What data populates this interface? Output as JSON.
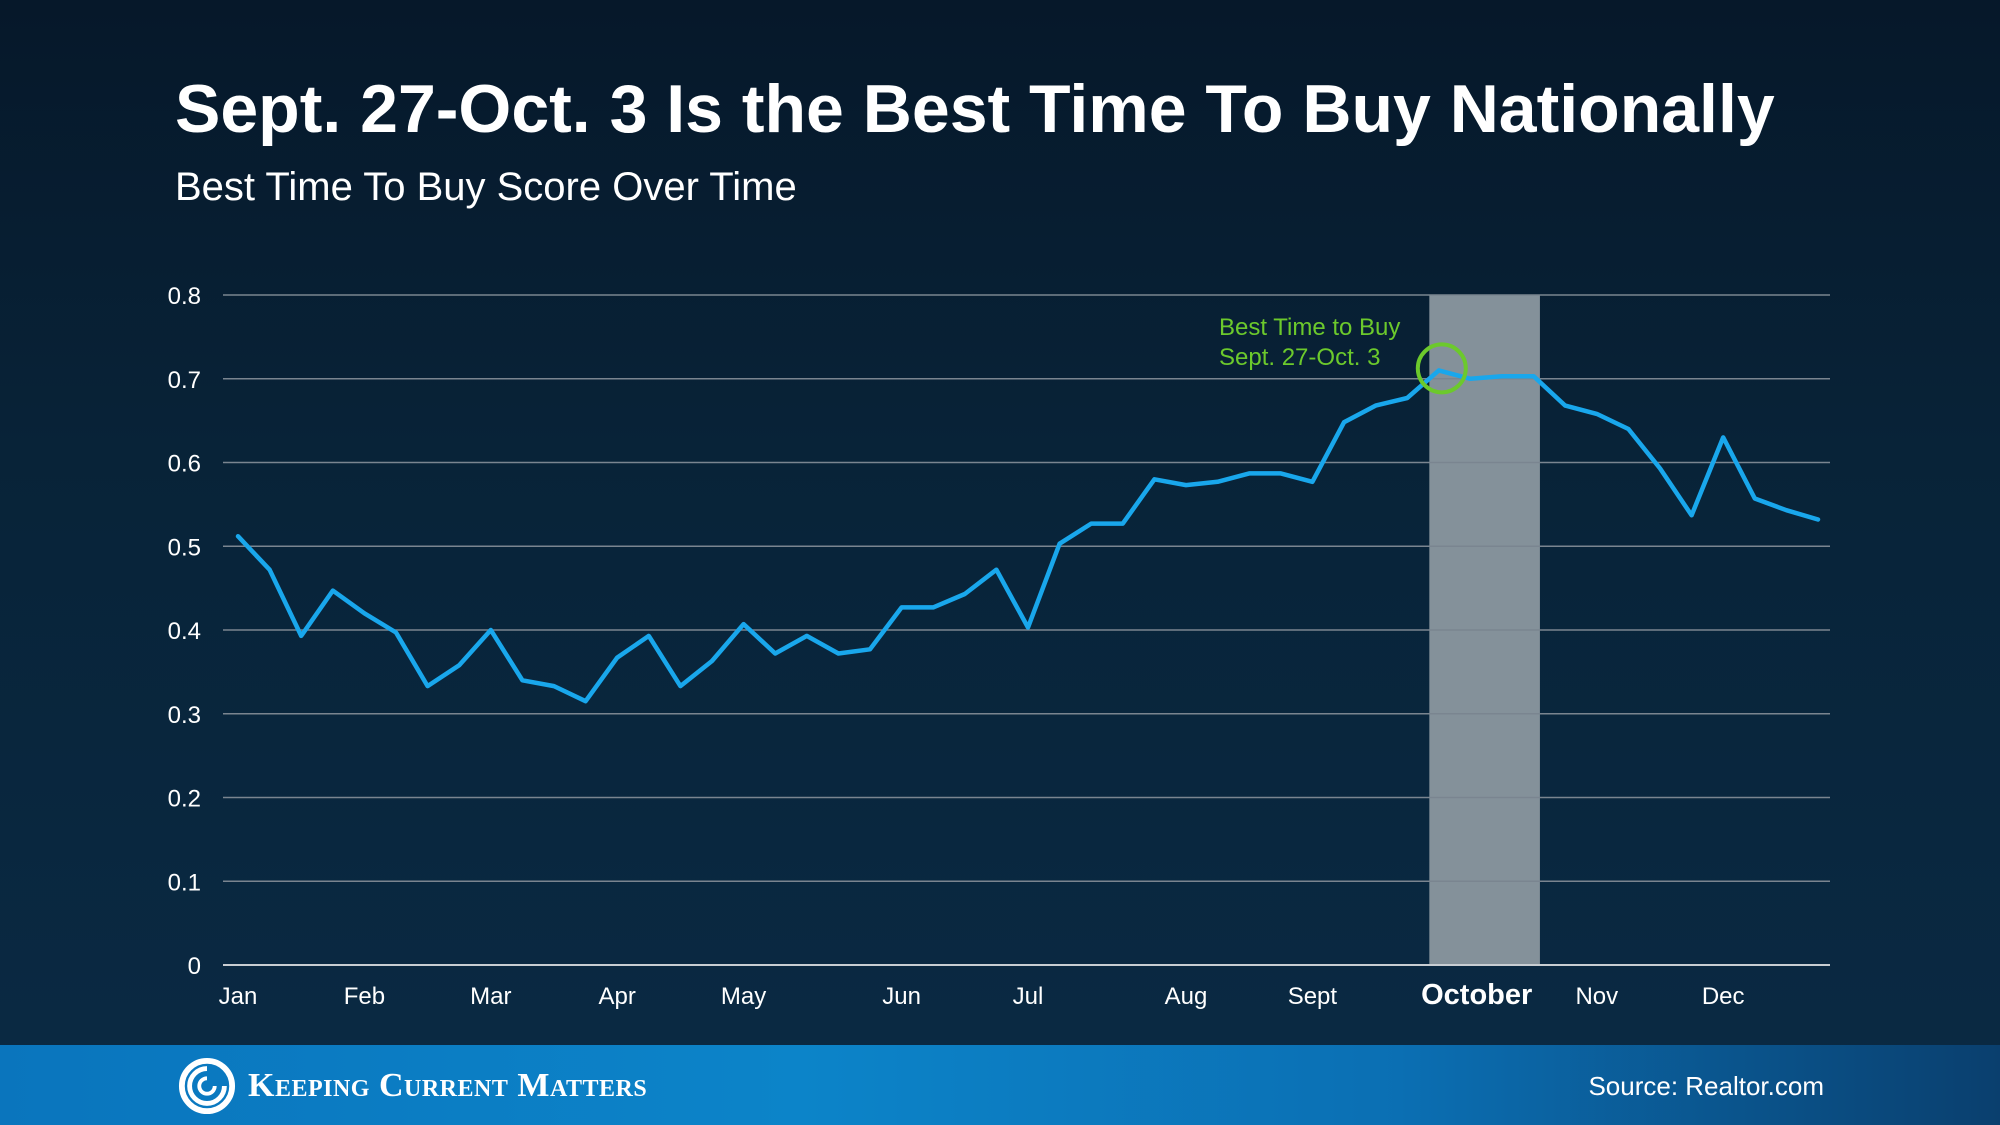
{
  "header": {
    "title": "Sept. 27-Oct. 3 Is the Best Time To Buy Nationally",
    "subtitle": "Best Time To Buy Score Over Time"
  },
  "footer": {
    "brand": "Keeping Current Matters",
    "source": "Source: Realtor.com"
  },
  "colors": {
    "line": "#19a7ec",
    "highlight_band": "#84919a",
    "annotation": "#6cc92c",
    "gridline": "#7a8590"
  },
  "chart_data": {
    "type": "line",
    "title": "Sept. 27-Oct. 3 Is the Best Time To Buy Nationally",
    "subtitle": "Best Time To Buy Score Over Time",
    "xlabel": "",
    "ylabel": "",
    "ylim": [
      0,
      0.8
    ],
    "yticks": [
      "0",
      "0.1",
      "0.2",
      "0.3",
      "0.4",
      "0.5",
      "0.6",
      "0.7",
      "0.8"
    ],
    "grid": true,
    "month_labels": [
      {
        "label": "Jan",
        "week": 0
      },
      {
        "label": "Feb",
        "week": 4
      },
      {
        "label": "Mar",
        "week": 8
      },
      {
        "label": "Apr",
        "week": 12
      },
      {
        "label": "May",
        "week": 16
      },
      {
        "label": "Jun",
        "week": 21
      },
      {
        "label": "Jul",
        "week": 25
      },
      {
        "label": "Aug",
        "week": 30
      },
      {
        "label": "Sept",
        "week": 34
      },
      {
        "label": "October",
        "week": 39.2,
        "emphasis": true
      },
      {
        "label": "Nov",
        "week": 43
      },
      {
        "label": "Dec",
        "week": 47
      }
    ],
    "highlight": {
      "label": "October",
      "from_week": 37.7,
      "to_week": 41.2
    },
    "series": [
      {
        "name": "",
        "values": [
          0.512,
          0.472,
          0.393,
          0.447,
          0.42,
          0.397,
          0.333,
          0.358,
          0.4,
          0.34,
          0.333,
          0.315,
          0.367,
          0.393,
          0.333,
          0.363,
          0.407,
          0.372,
          0.393,
          0.372,
          0.377,
          0.427,
          0.427,
          0.443,
          0.472,
          0.403,
          0.503,
          0.527,
          0.527,
          0.58,
          0.573,
          0.577,
          0.587,
          0.587,
          0.577,
          0.648,
          0.668,
          0.677,
          0.71,
          0.7,
          0.703,
          0.703,
          0.668,
          0.658,
          0.64,
          0.593,
          0.537,
          0.63,
          0.557,
          0.543,
          0.532
        ]
      }
    ],
    "annotation": {
      "lines": [
        "Best Time to Buy",
        "Sept. 27-Oct. 3"
      ],
      "point_week": 38
    }
  }
}
